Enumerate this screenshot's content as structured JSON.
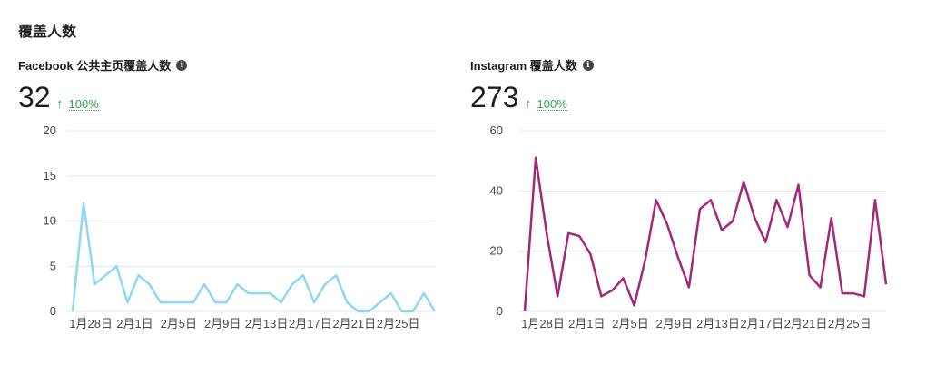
{
  "page": {
    "section_title": "覆盖人数"
  },
  "panels": [
    {
      "title": "Facebook 公共主页覆盖人数",
      "info_icon": "info-icon",
      "value": "32",
      "delta": "100%",
      "delta_color": "#31a24c",
      "line_color": "#8fd6f5"
    },
    {
      "title": "Instagram 覆盖人数",
      "info_icon": "info-icon",
      "value": "273",
      "delta": "100%",
      "delta_color": "#31a24c",
      "line_color": "#a3287a"
    }
  ],
  "chart_data": [
    {
      "type": "line",
      "title": "",
      "x_tick_labels": [
        "1月28日",
        "2月1日",
        "2月5日",
        "2月9日",
        "2月13日",
        "2月17日",
        "2月21日",
        "2月25日"
      ],
      "x_tick_indices": [
        1,
        5,
        9,
        13,
        17,
        21,
        25,
        29
      ],
      "yticks": [
        0,
        5,
        10,
        15,
        20
      ],
      "ylim": [
        0,
        20
      ],
      "grid": true,
      "series": [
        {
          "values": [
            0,
            12,
            3,
            4,
            5,
            1,
            4,
            3,
            1,
            1,
            1,
            1,
            3,
            1,
            1,
            3,
            2,
            2,
            2,
            1,
            3,
            4,
            1,
            3,
            4,
            1,
            0,
            0,
            1,
            2,
            0,
            0,
            2,
            0
          ]
        }
      ]
    },
    {
      "type": "line",
      "title": "",
      "x_tick_labels": [
        "1月28日",
        "2月1日",
        "2月5日",
        "2月9日",
        "2月13日",
        "2月17日",
        "2月21日",
        "2月25日"
      ],
      "x_tick_indices": [
        1,
        5,
        9,
        13,
        17,
        21,
        25,
        29
      ],
      "yticks": [
        0,
        20,
        40,
        60
      ],
      "ylim": [
        0,
        60
      ],
      "grid": true,
      "series": [
        {
          "values": [
            0,
            51,
            26,
            5,
            26,
            25,
            19,
            5,
            7,
            11,
            2,
            17,
            37,
            29,
            18,
            8,
            34,
            37,
            27,
            30,
            43,
            31,
            23,
            37,
            28,
            42,
            12,
            8,
            31,
            6,
            6,
            5,
            37,
            9
          ]
        }
      ]
    }
  ]
}
